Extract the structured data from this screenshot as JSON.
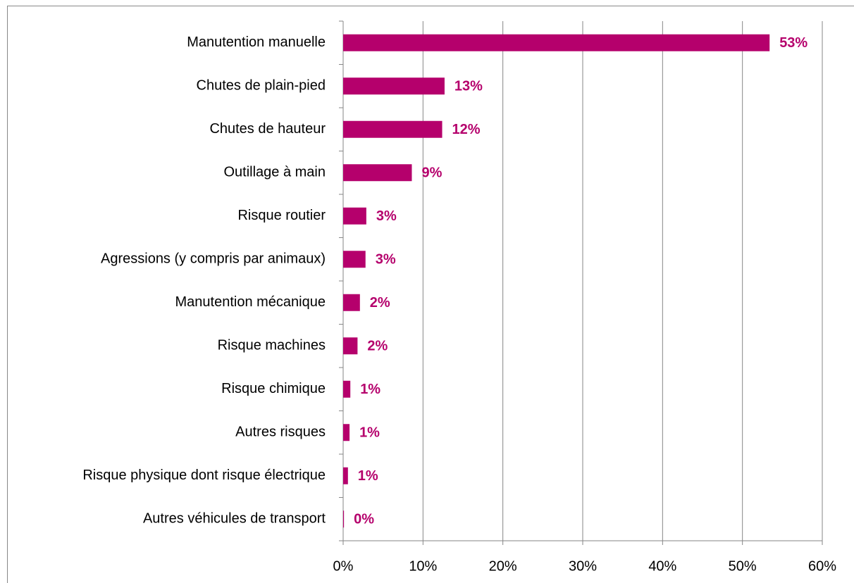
{
  "chart_data": {
    "type": "bar",
    "orientation": "horizontal",
    "categories": [
      "Manutention manuelle",
      "Chutes de plain-pied",
      "Chutes de hauteur",
      "Outillage à main",
      "Risque routier",
      "Agressions (y compris par animaux)",
      "Manutention mécanique",
      "Risque machines",
      "Risque chimique",
      "Autres risques",
      "Risque physique dont risque électrique",
      "Autres véhicules de transport"
    ],
    "values": [
      53.4,
      12.7,
      12.4,
      8.6,
      2.9,
      2.8,
      2.1,
      1.8,
      0.9,
      0.8,
      0.6,
      0.1
    ],
    "value_labels": [
      "53%",
      "13%",
      "12%",
      "9%",
      "3%",
      "3%",
      "2%",
      "2%",
      "1%",
      "1%",
      "1%",
      "0%"
    ],
    "color": "#b5006c",
    "xlim": [
      0,
      60
    ],
    "xticks": [
      {
        "value": 0,
        "label": "0%"
      },
      {
        "value": 10,
        "label": "10%"
      },
      {
        "value": 20,
        "label": "20%"
      },
      {
        "value": 30,
        "label": "30%"
      },
      {
        "value": 40,
        "label": "40%"
      },
      {
        "value": 50,
        "label": "50%"
      },
      {
        "value": 60,
        "label": "60%"
      }
    ],
    "grid": true
  }
}
